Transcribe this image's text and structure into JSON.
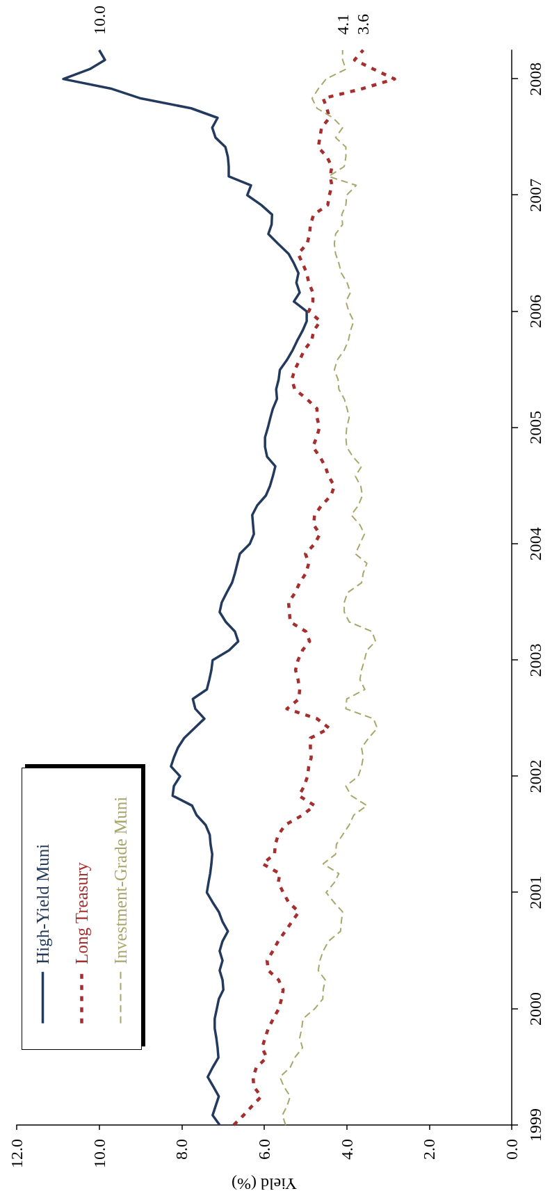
{
  "chart_data": {
    "type": "line",
    "orientation": "horizontal",
    "xlabel": "Yield (%)",
    "x": [
      "1999-01",
      "1999-02",
      "1999-03",
      "1999-04",
      "1999-05",
      "1999-06",
      "1999-07",
      "1999-08",
      "1999-09",
      "1999-10",
      "1999-11",
      "1999-12",
      "2000-01",
      "2000-02",
      "2000-03",
      "2000-04",
      "2000-05",
      "2000-06",
      "2000-07",
      "2000-08",
      "2000-09",
      "2000-10",
      "2000-11",
      "2000-12",
      "2001-01",
      "2001-02",
      "2001-03",
      "2001-04",
      "2001-05",
      "2001-06",
      "2001-07",
      "2001-08",
      "2001-09",
      "2001-10",
      "2001-11",
      "2001-12",
      "2002-01",
      "2002-02",
      "2002-03",
      "2002-04",
      "2002-05",
      "2002-06",
      "2002-07",
      "2002-08",
      "2002-09",
      "2002-10",
      "2002-11",
      "2002-12",
      "2003-01",
      "2003-02",
      "2003-03",
      "2003-04",
      "2003-05",
      "2003-06",
      "2003-07",
      "2003-08",
      "2003-09",
      "2003-10",
      "2003-11",
      "2003-12",
      "2004-01",
      "2004-02",
      "2004-03",
      "2004-04",
      "2004-05",
      "2004-06",
      "2004-07",
      "2004-08",
      "2004-09",
      "2004-10",
      "2004-11",
      "2004-12",
      "2005-01",
      "2005-02",
      "2005-03",
      "2005-04",
      "2005-05",
      "2005-06",
      "2005-07",
      "2005-08",
      "2005-09",
      "2005-10",
      "2005-11",
      "2005-12",
      "2006-01",
      "2006-02",
      "2006-03",
      "2006-04",
      "2006-05",
      "2006-06",
      "2006-07",
      "2006-08",
      "2006-09",
      "2006-10",
      "2006-11",
      "2006-12",
      "2007-01",
      "2007-02",
      "2007-03",
      "2007-04",
      "2007-05",
      "2007-06",
      "2007-07",
      "2007-08",
      "2007-09",
      "2007-10",
      "2007-11",
      "2007-12",
      "2008-01",
      "2008-02",
      "2008-03",
      "2008-04"
    ],
    "series": [
      {
        "name": "High-Yield Muni",
        "color": "#233a5e",
        "line_style": "solid",
        "values": [
          7.08,
          7.25,
          7.18,
          7.1,
          7.23,
          7.37,
          7.25,
          7.11,
          7.13,
          7.16,
          7.2,
          7.2,
          7.15,
          7.1,
          6.99,
          7.01,
          7.08,
          7.01,
          7.08,
          7.01,
          6.88,
          7.01,
          7.1,
          7.25,
          7.39,
          7.35,
          7.31,
          7.28,
          7.26,
          7.3,
          7.32,
          7.42,
          7.64,
          7.75,
          8.22,
          8.19,
          8.04,
          8.26,
          8.19,
          8.09,
          7.94,
          7.69,
          7.45,
          7.67,
          7.73,
          7.39,
          7.33,
          7.28,
          7.25,
          6.85,
          6.63,
          6.71,
          6.93,
          7.08,
          7.03,
          6.91,
          6.78,
          6.71,
          6.65,
          6.59,
          6.35,
          6.25,
          6.27,
          6.29,
          6.17,
          5.96,
          5.86,
          5.79,
          5.73,
          5.93,
          5.98,
          5.98,
          5.91,
          5.85,
          5.79,
          5.69,
          5.71,
          5.65,
          5.62,
          5.45,
          5.31,
          5.2,
          5.07,
          4.97,
          4.97,
          5.28,
          5.14,
          5.22,
          5.17,
          5.28,
          5.41,
          5.66,
          5.9,
          5.82,
          5.81,
          6.07,
          6.41,
          6.32,
          6.86,
          6.86,
          6.88,
          6.94,
          7.18,
          7.26,
          7.13,
          7.77,
          8.99,
          9.69,
          10.87,
          10.23,
          9.86,
          10.0
        ],
        "value_labels": [
          null,
          null,
          null,
          null,
          null,
          null,
          null,
          null,
          null,
          null,
          null,
          null,
          null,
          null,
          null,
          null,
          null,
          null,
          null,
          null,
          null,
          null,
          null,
          null,
          null,
          null,
          null,
          null,
          null,
          null,
          null,
          null,
          null,
          null,
          null,
          null,
          null,
          null,
          null,
          null,
          null,
          null,
          null,
          null,
          null,
          null,
          null,
          null,
          null,
          null,
          null,
          null,
          null,
          null,
          null,
          null,
          null,
          null,
          null,
          null,
          null,
          null,
          null,
          null,
          null,
          null,
          null,
          null,
          null,
          null,
          null,
          null,
          null,
          null,
          null,
          null,
          null,
          null,
          null,
          null,
          null,
          null,
          null,
          null,
          null,
          null,
          null,
          null,
          null,
          null,
          null,
          null,
          null,
          null,
          null,
          null,
          null,
          null,
          null,
          null,
          null,
          null,
          null,
          null,
          null,
          null,
          null,
          null,
          null,
          null,
          null,
          "10.0"
        ]
      },
      {
        "name": "Long Treasury",
        "color": "#a52e2e",
        "line_style": "dotted",
        "values": [
          6.74,
          6.5,
          6.3,
          6.07,
          6.25,
          6.27,
          6.19,
          5.94,
          6.05,
          5.98,
          5.9,
          5.78,
          5.65,
          5.58,
          5.54,
          5.65,
          5.9,
          5.93,
          5.79,
          5.66,
          5.49,
          5.33,
          5.16,
          5.41,
          5.54,
          5.66,
          5.62,
          6.04,
          5.75,
          5.73,
          5.66,
          5.49,
          5.07,
          4.78,
          5.16,
          5.03,
          4.95,
          4.92,
          4.86,
          4.88,
          4.88,
          4.42,
          4.72,
          5.45,
          5.16,
          5.14,
          5.18,
          5.24,
          5.18,
          5.07,
          4.9,
          4.99,
          5.37,
          5.39,
          5.41,
          5.25,
          5.14,
          4.99,
          4.92,
          5.0,
          4.78,
          4.65,
          4.8,
          4.78,
          4.61,
          4.38,
          4.3,
          4.44,
          4.52,
          4.65,
          4.82,
          4.73,
          4.66,
          4.72,
          4.72,
          4.97,
          5.26,
          5.33,
          5.26,
          5.14,
          5.03,
          4.85,
          4.8,
          4.64,
          4.92,
          4.82,
          4.82,
          4.92,
          4.97,
          5.07,
          5.18,
          4.96,
          4.9,
          4.88,
          4.8,
          4.46,
          4.42,
          4.36,
          4.4,
          4.36,
          4.48,
          4.69,
          4.65,
          4.61,
          4.42,
          4.48,
          4.57,
          3.64,
          2.84,
          3.35,
          3.81,
          3.6
        ],
        "value_labels": [
          null,
          null,
          null,
          null,
          null,
          null,
          null,
          null,
          null,
          null,
          null,
          null,
          null,
          null,
          null,
          null,
          null,
          null,
          null,
          null,
          null,
          null,
          null,
          null,
          null,
          null,
          null,
          null,
          null,
          null,
          null,
          null,
          null,
          null,
          null,
          null,
          null,
          null,
          null,
          null,
          null,
          null,
          null,
          null,
          null,
          null,
          null,
          null,
          null,
          null,
          null,
          null,
          null,
          null,
          null,
          null,
          null,
          null,
          null,
          null,
          null,
          null,
          null,
          null,
          null,
          null,
          null,
          null,
          null,
          null,
          null,
          null,
          null,
          null,
          null,
          null,
          null,
          null,
          null,
          null,
          null,
          null,
          null,
          null,
          null,
          null,
          null,
          null,
          null,
          null,
          null,
          null,
          null,
          null,
          null,
          null,
          null,
          null,
          null,
          null,
          null,
          null,
          null,
          null,
          null,
          null,
          null,
          null,
          null,
          null,
          null,
          "3.6"
        ]
      },
      {
        "name": "Investment-Grade Muni",
        "color": "#a8a76b",
        "line_style": "dashed",
        "values": [
          5.48,
          5.56,
          5.45,
          5.37,
          5.52,
          5.62,
          5.37,
          5.26,
          5.07,
          5.14,
          5.09,
          5.06,
          4.78,
          4.58,
          4.57,
          4.52,
          4.69,
          4.65,
          4.57,
          4.44,
          4.15,
          4.13,
          4.1,
          4.31,
          4.5,
          4.3,
          4.19,
          4.57,
          4.27,
          4.25,
          4.1,
          3.94,
          3.83,
          3.51,
          3.89,
          4.02,
          3.72,
          3.64,
          3.6,
          3.64,
          3.47,
          3.26,
          3.35,
          4.02,
          4.0,
          3.56,
          3.68,
          3.64,
          3.57,
          3.51,
          3.3,
          3.39,
          3.94,
          4.06,
          4.06,
          3.98,
          3.64,
          3.6,
          3.51,
          3.79,
          3.68,
          3.57,
          3.68,
          3.89,
          3.72,
          3.62,
          3.66,
          3.79,
          3.64,
          3.85,
          4.0,
          4.02,
          4.0,
          3.94,
          3.99,
          4.06,
          4.19,
          4.21,
          4.3,
          4.23,
          4.06,
          3.96,
          3.91,
          3.83,
          3.95,
          4.02,
          3.91,
          3.99,
          4.13,
          4.19,
          4.27,
          4.3,
          4.27,
          4.1,
          4.12,
          4.02,
          4.0,
          3.77,
          4.44,
          4.06,
          4.02,
          4.02,
          4.27,
          4.1,
          4.33,
          4.72,
          4.84,
          4.69,
          4.5,
          4.02,
          4.1,
          4.1
        ],
        "value_labels": [
          null,
          null,
          null,
          null,
          null,
          null,
          null,
          null,
          null,
          null,
          null,
          null,
          null,
          null,
          null,
          null,
          null,
          null,
          null,
          null,
          null,
          null,
          null,
          null,
          null,
          null,
          null,
          null,
          null,
          null,
          null,
          null,
          null,
          null,
          null,
          null,
          null,
          null,
          null,
          null,
          null,
          null,
          null,
          null,
          null,
          null,
          null,
          null,
          null,
          null,
          null,
          null,
          null,
          null,
          null,
          null,
          null,
          null,
          null,
          null,
          null,
          null,
          null,
          null,
          null,
          null,
          null,
          null,
          null,
          null,
          null,
          null,
          null,
          null,
          null,
          null,
          null,
          null,
          null,
          null,
          null,
          null,
          null,
          null,
          null,
          null,
          null,
          null,
          null,
          null,
          null,
          null,
          null,
          null,
          null,
          null,
          null,
          null,
          null,
          null,
          null,
          null,
          null,
          null,
          null,
          null,
          null,
          null,
          null,
          null,
          null,
          "4.1"
        ]
      }
    ],
    "xlim": [
      12,
      0
    ],
    "xticks": [
      {
        "value": 12,
        "label": "12.0"
      },
      {
        "value": 10,
        "label": "10.0"
      },
      {
        "value": 8,
        "label": "8.0"
      },
      {
        "value": 6,
        "label": "6.0"
      },
      {
        "value": 4,
        "label": "4.0"
      },
      {
        "value": 2,
        "label": "2.0"
      },
      {
        "value": 0,
        "label": "0.0"
      }
    ],
    "ylim": [
      "1999-01",
      "2008-04"
    ],
    "yticks": [
      "1999",
      "2000",
      "2001",
      "2002",
      "2003",
      "2004",
      "2005",
      "2006",
      "2007",
      "2008"
    ],
    "grid": false,
    "legend": "bottom left"
  }
}
